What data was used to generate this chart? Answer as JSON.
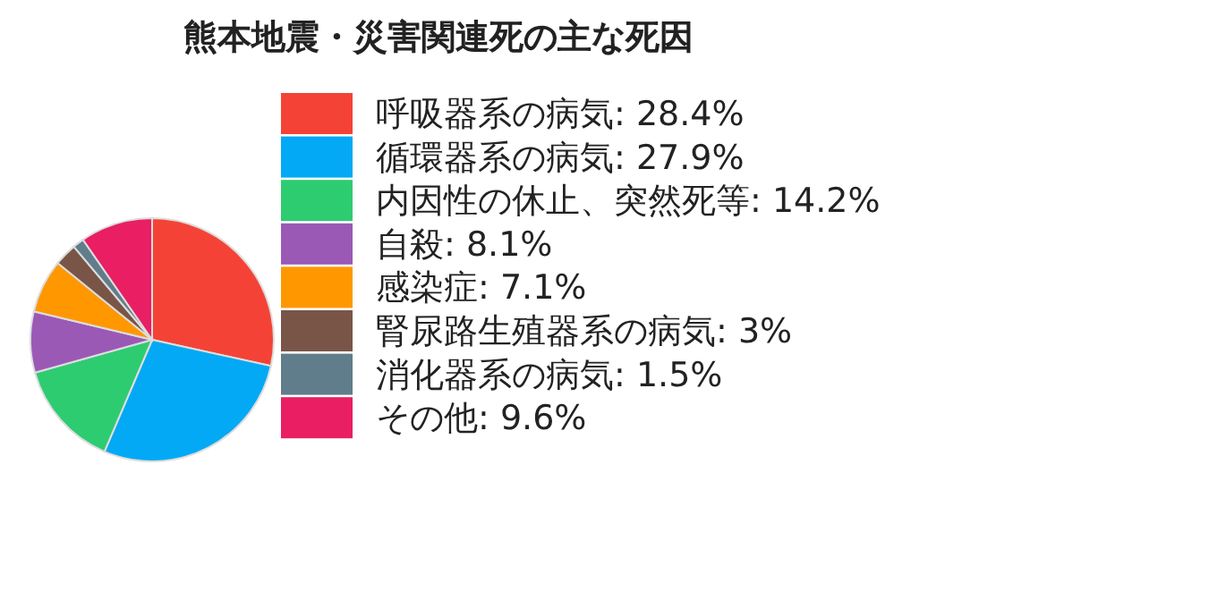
{
  "chart_data": {
    "type": "pie",
    "title": "熊本地震・災害関連死の主な死因",
    "categories": [
      "呼吸器系の病気: 28.4%",
      "循環器系の病気: 27.9%",
      "内因性の休止、突然死等: 14.2%",
      "自殺: 8.1%",
      "感染症: 7.1%",
      "腎尿路生殖器系の病気: 3%",
      "消化器系の病気: 1.5%",
      "その他: 9.6%"
    ],
    "values": [
      28.4,
      27.9,
      14.2,
      8.1,
      7.1,
      3,
      1.5,
      9.6
    ],
    "colors": [
      "#f44336",
      "#03a9f4",
      "#2ecc71",
      "#9b59b6",
      "#ff9800",
      "#795548",
      "#607d8b",
      "#e91e63"
    ],
    "legend": "right"
  }
}
